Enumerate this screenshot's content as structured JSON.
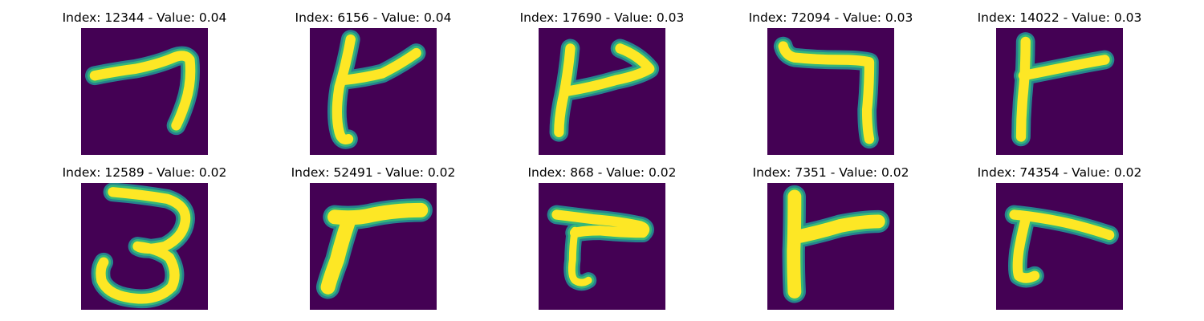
{
  "colors": {
    "background": "#440154",
    "stroke_core": "#fde725",
    "stroke_edge": "#35b779",
    "stroke_halo": "#26828e"
  },
  "figure": {
    "panels": [
      {
        "title": "Index: 12344 - Value: 0.04",
        "glyph": "seven-glyph"
      },
      {
        "title": "Index: 6156 - Value: 0.04",
        "glyph": "ta-glyph-a"
      },
      {
        "title": "Index: 17690 - Value: 0.03",
        "glyph": "ta-glyph-b"
      },
      {
        "title": "Index: 72094 - Value: 0.03",
        "glyph": "seven-glyph-b"
      },
      {
        "title": "Index: 14022 - Value: 0.03",
        "glyph": "ta-glyph-c"
      },
      {
        "title": "Index: 12589 - Value: 0.02",
        "glyph": "three-glyph"
      },
      {
        "title": "Index: 52491 - Value: 0.02",
        "glyph": "ta-glyph-d"
      },
      {
        "title": "Index: 868 - Value: 0.02",
        "glyph": "ta-glyph-e"
      },
      {
        "title": "Index: 7351 - Value: 0.02",
        "glyph": "ta-glyph-f"
      },
      {
        "title": "Index: 74354 - Value: 0.02",
        "glyph": "ta-glyph-g"
      }
    ]
  }
}
